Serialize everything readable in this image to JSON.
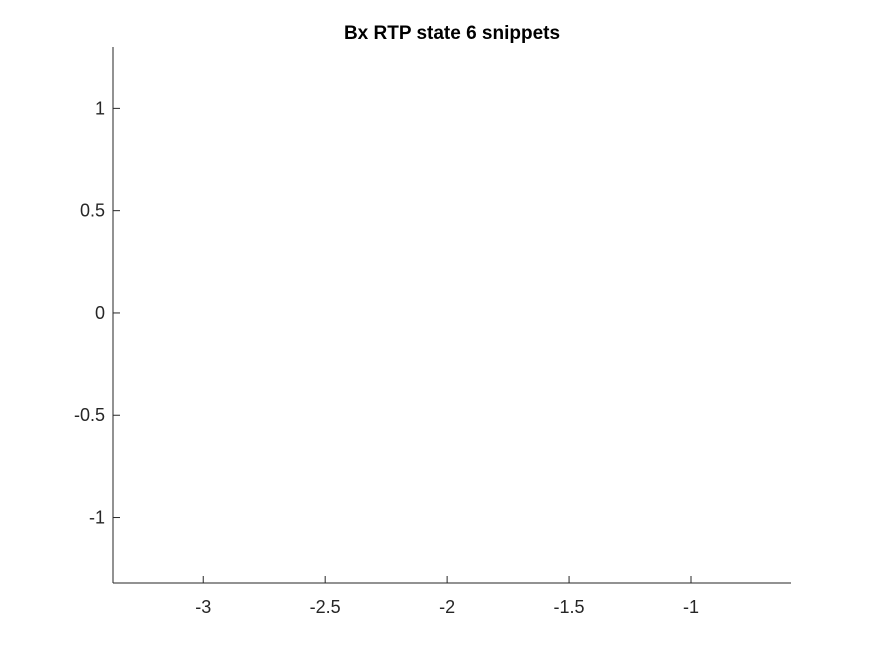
{
  "chart_data": {
    "type": "line",
    "title": "Bx  RTP state 6 snippets",
    "xlabel": "",
    "ylabel": "",
    "xlim": [
      -3.37,
      -0.59
    ],
    "ylim": [
      -1.32,
      1.3
    ],
    "xticks": [
      -3,
      -2.5,
      -2,
      -1.5,
      -1
    ],
    "xtick_labels": [
      "-3",
      "-2.5",
      "-2",
      "-1.5",
      "-1"
    ],
    "yticks": [
      1,
      0.5,
      0,
      -0.5,
      -1
    ],
    "ytick_labels": [
      "1",
      "0.5",
      "0",
      "-0.5",
      "-1"
    ],
    "grid": false,
    "legend": "none",
    "series": [],
    "axis_color": "#262626",
    "background_color": "#ffffff"
  }
}
